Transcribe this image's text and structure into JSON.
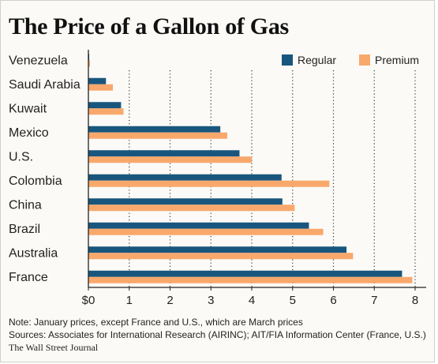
{
  "title": "The Price of a Gallon of Gas",
  "chart_data": {
    "type": "bar",
    "orientation": "horizontal",
    "categories": [
      "Venezuela",
      "Saudi Arabia",
      "Kuwait",
      "Mexico",
      "U.S.",
      "Colombia",
      "China",
      "Brazil",
      "Australia",
      "France"
    ],
    "series": [
      {
        "name": "Regular",
        "color": "#19567d",
        "values": [
          0.02,
          0.43,
          0.8,
          3.23,
          3.7,
          4.73,
          4.75,
          5.4,
          6.32,
          7.68
        ]
      },
      {
        "name": "Premium",
        "color": "#f9a86c",
        "values": [
          0.04,
          0.6,
          0.86,
          3.4,
          4.0,
          5.9,
          5.05,
          5.75,
          6.48,
          7.93
        ]
      }
    ],
    "xlim": [
      0,
      8
    ],
    "xticks": [
      "$0",
      "1",
      "2",
      "3",
      "4",
      "5",
      "6",
      "7",
      "8"
    ],
    "grid": "dotted vertical",
    "legend": "top-right"
  },
  "notes": {
    "note": "Note: January prices, except France and U.S., which are March prices",
    "sources": "Sources: Associates for International Research (AIRINC); AIT/FIA Information Center (France, U.S.)",
    "credit": "The Wall Street Journal"
  }
}
